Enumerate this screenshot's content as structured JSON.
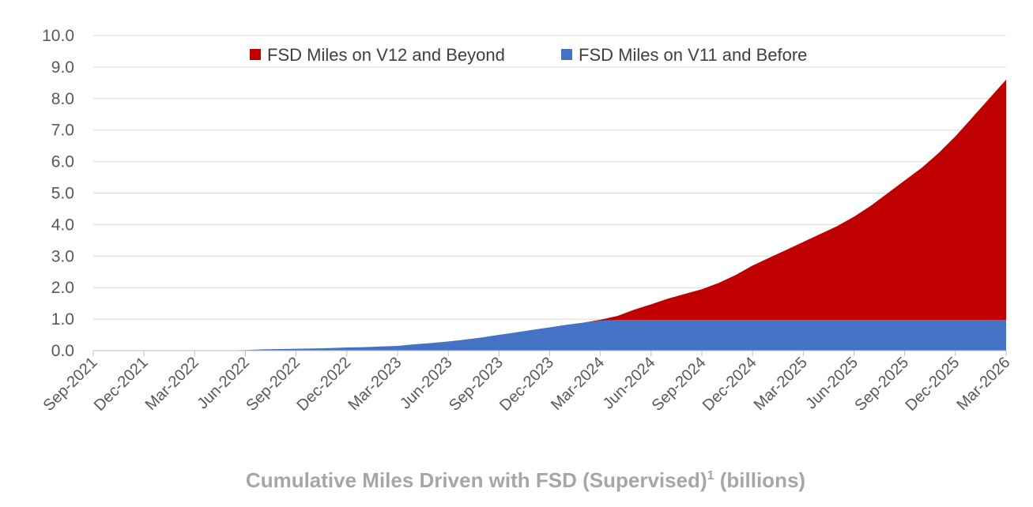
{
  "chart_data": {
    "type": "area",
    "stacked": true,
    "title": "",
    "caption": "Cumulative Miles Driven with FSD (Supervised)",
    "caption_superscript": "1",
    "caption_units": "(billions)",
    "xlabel": "",
    "ylabel": "",
    "ylim": [
      0,
      10
    ],
    "yticks": [
      "0.0",
      "1.0",
      "2.0",
      "3.0",
      "4.0",
      "5.0",
      "6.0",
      "7.0",
      "8.0",
      "9.0",
      "10.0"
    ],
    "xticks": [
      "Sep-2021",
      "Dec-2021",
      "Mar-2022",
      "Jun-2022",
      "Sep-2022",
      "Dec-2022",
      "Mar-2023",
      "Jun-2023",
      "Sep-2023",
      "Dec-2023",
      "Mar-2024",
      "Jun-2024",
      "Sep-2024",
      "Dec-2024",
      "Mar-2025",
      "Jun-2025",
      "Sep-2025",
      "Dec-2025",
      "Mar-2026"
    ],
    "grid": true,
    "legend_position": "top-center",
    "x": [
      "Sep-2021",
      "Oct-2021",
      "Nov-2021",
      "Dec-2021",
      "Jan-2022",
      "Feb-2022",
      "Mar-2022",
      "Apr-2022",
      "May-2022",
      "Jun-2022",
      "Jul-2022",
      "Aug-2022",
      "Sep-2022",
      "Oct-2022",
      "Nov-2022",
      "Dec-2022",
      "Jan-2023",
      "Feb-2023",
      "Mar-2023",
      "Apr-2023",
      "May-2023",
      "Jun-2023",
      "Jul-2023",
      "Aug-2023",
      "Sep-2023",
      "Oct-2023",
      "Nov-2023",
      "Dec-2023",
      "Jan-2024",
      "Feb-2024",
      "Mar-2024",
      "Apr-2024",
      "May-2024",
      "Jun-2024",
      "Jul-2024",
      "Aug-2024",
      "Sep-2024",
      "Oct-2024",
      "Nov-2024",
      "Dec-2024",
      "Jan-2025",
      "Feb-2025",
      "Mar-2025",
      "Apr-2025",
      "May-2025",
      "Jun-2025",
      "Jul-2025",
      "Aug-2025",
      "Sep-2025",
      "Oct-2025",
      "Nov-2025",
      "Dec-2025",
      "Jan-2026",
      "Feb-2026",
      "Mar-2026"
    ],
    "series": [
      {
        "name": "FSD Miles on V11 and Before",
        "color": "#4472c4",
        "values": [
          0.0,
          0.0,
          0.0,
          0.0,
          0.0,
          0.0,
          0.0,
          0.01,
          0.01,
          0.02,
          0.04,
          0.05,
          0.06,
          0.07,
          0.08,
          0.1,
          0.11,
          0.13,
          0.15,
          0.2,
          0.24,
          0.29,
          0.35,
          0.42,
          0.5,
          0.58,
          0.66,
          0.74,
          0.82,
          0.89,
          0.95,
          0.97,
          0.97,
          0.97,
          0.97,
          0.97,
          0.97,
          0.97,
          0.97,
          0.97,
          0.97,
          0.97,
          0.97,
          0.97,
          0.97,
          0.97,
          0.97,
          0.97,
          0.97,
          0.97,
          0.97,
          0.97,
          0.97,
          0.97,
          0.97
        ]
      },
      {
        "name": "FSD Miles on V12 and Beyond",
        "color": "#c00000",
        "values": [
          0,
          0,
          0,
          0,
          0,
          0,
          0,
          0,
          0,
          0,
          0,
          0,
          0,
          0,
          0,
          0,
          0,
          0,
          0,
          0,
          0,
          0,
          0,
          0,
          0,
          0,
          0,
          0,
          0,
          0,
          0.03,
          0.13,
          0.33,
          0.5,
          0.68,
          0.83,
          0.98,
          1.18,
          1.43,
          1.73,
          1.98,
          2.23,
          2.48,
          2.73,
          2.98,
          3.28,
          3.63,
          4.03,
          4.43,
          4.83,
          5.3,
          5.83,
          6.43,
          7.03,
          7.63
        ]
      }
    ]
  }
}
